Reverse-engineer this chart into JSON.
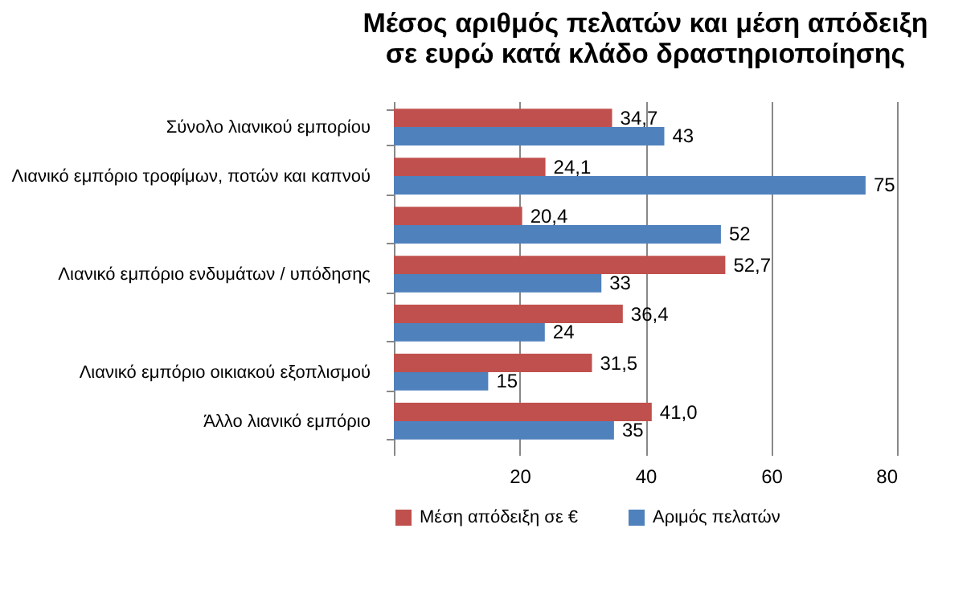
{
  "chart_data": {
    "type": "bar",
    "orientation": "horizontal",
    "title": "Μέσος αριθμός πελατών και μέση απόδειξη σε ευρώ κατά κλάδο δραστηριοποίησης",
    "categories": [
      "Σύνολο λιανικού εμπορίου",
      "Λιανικό εμπόριο τροφίμων, ποτών και καπνού",
      null,
      "Λιανικό εμπόριο ενδυμάτων  / υπόδησης",
      null,
      "Λιανικό εμπόριο οικιακού εξοπλισμού",
      "Άλλο λιανικό εμπόριο"
    ],
    "series": [
      {
        "name": "Μέση απόδειξη σε €",
        "color": "#c0504d",
        "values": [
          34.7,
          24.1,
          20.4,
          52.7,
          36.4,
          31.5,
          41.0
        ],
        "value_labels": [
          "34,7",
          "24,1",
          "20,4",
          "52,7",
          "36,4",
          "31,5",
          "41,0"
        ]
      },
      {
        "name": "Αριμός πελατών",
        "color": "#4f81bd",
        "values": [
          43,
          75,
          52,
          33,
          24,
          15,
          35
        ],
        "value_labels": [
          "43",
          "75",
          "52",
          "33",
          "24",
          "15",
          "35"
        ]
      }
    ],
    "xlim": [
      0,
      80
    ],
    "xticks": [
      {
        "value": 0,
        "label": null
      },
      20,
      40,
      60,
      80
    ],
    "grid": "x",
    "legend": "bottom"
  }
}
